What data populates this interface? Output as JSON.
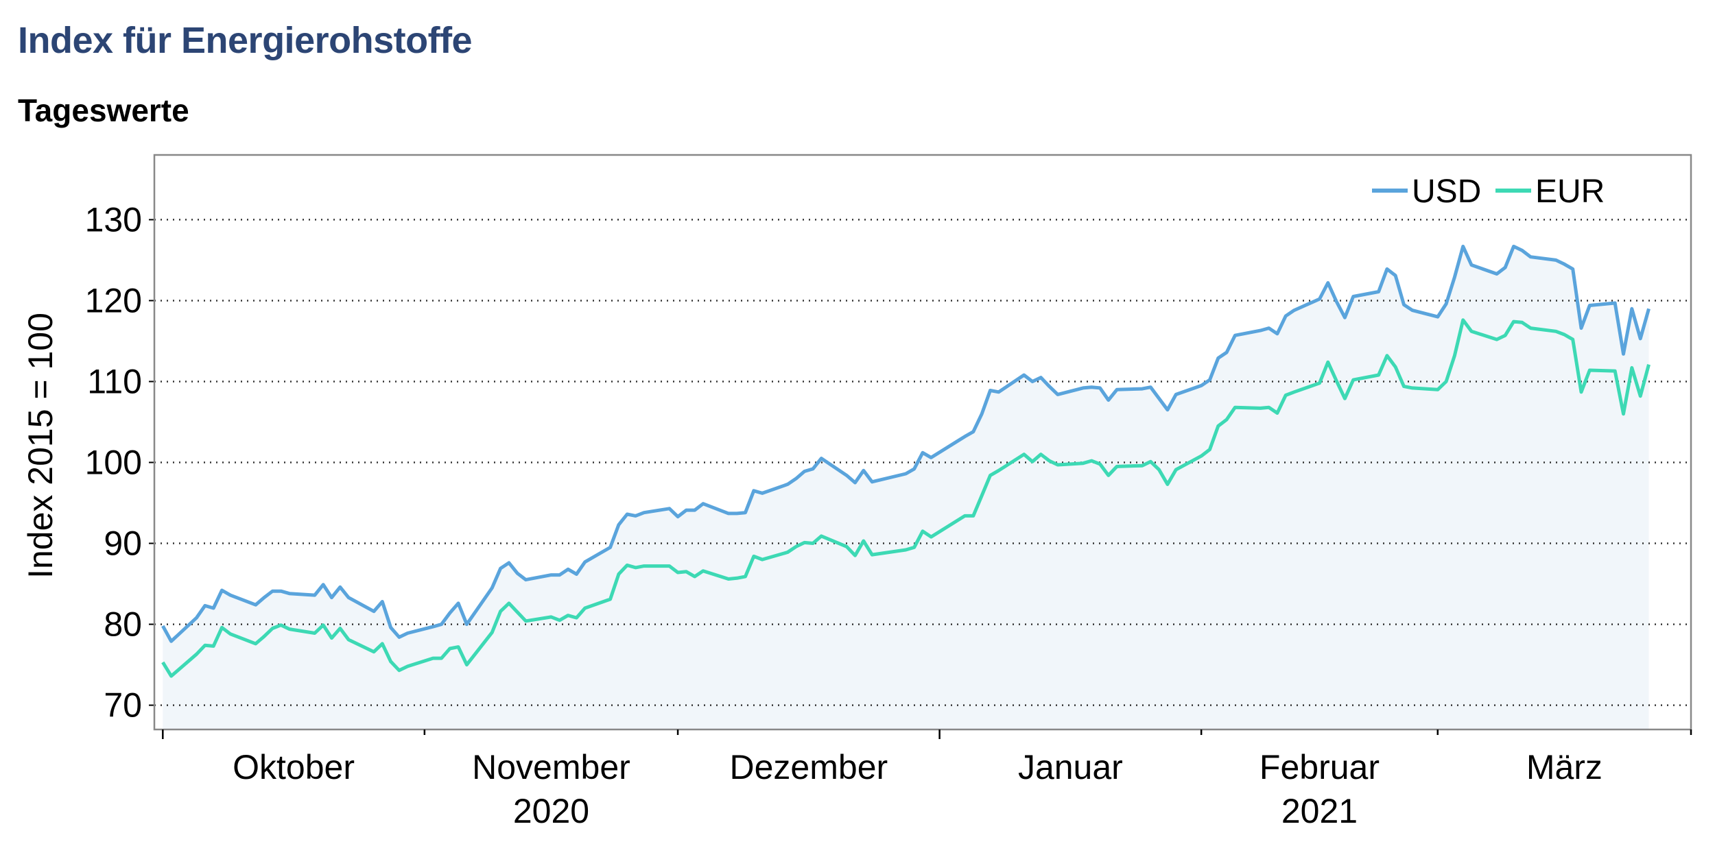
{
  "header": {
    "title": "Index für Energierohstoffe",
    "subtitle": "Tageswerte"
  },
  "colors": {
    "usd": "#5aa4dc",
    "eur": "#3dd9b4",
    "area": "#f1f6fa",
    "title": "#2c4574"
  },
  "chart_data": {
    "type": "line",
    "title": "Index für Energierohstoffe",
    "subtitle": "Tageswerte",
    "ylabel": "Index 2015 = 100",
    "xlabel": "",
    "ylim": [
      67,
      138
    ],
    "yticks": [
      70,
      80,
      90,
      100,
      110,
      120,
      130
    ],
    "grid": "horizontal-dotted",
    "legend_position": "top-right",
    "x_month_labels": [
      "Oktober",
      "November",
      "Dezember",
      "Januar",
      "Februar",
      "März"
    ],
    "x_year_labels": [
      {
        "label": "2020",
        "month": "November"
      },
      {
        "label": "2021",
        "month": "Februar"
      }
    ],
    "x_range": [
      "2020-09-30",
      "2021-03-31"
    ],
    "x_month_starts": [
      "2020-10-01",
      "2020-11-01",
      "2020-12-01",
      "2021-01-01",
      "2021-02-01",
      "2021-03-01"
    ],
    "x_major_ticks": [
      "2020-10-01",
      "2021-01-01"
    ],
    "dates": [
      "2020-10-01",
      "2020-10-02",
      "2020-10-05",
      "2020-10-06",
      "2020-10-07",
      "2020-10-08",
      "2020-10-09",
      "2020-10-12",
      "2020-10-13",
      "2020-10-14",
      "2020-10-15",
      "2020-10-16",
      "2020-10-19",
      "2020-10-20",
      "2020-10-21",
      "2020-10-22",
      "2020-10-23",
      "2020-10-26",
      "2020-10-27",
      "2020-10-28",
      "2020-10-29",
      "2020-10-30",
      "2020-11-02",
      "2020-11-03",
      "2020-11-04",
      "2020-11-05",
      "2020-11-06",
      "2020-11-09",
      "2020-11-10",
      "2020-11-11",
      "2020-11-12",
      "2020-11-13",
      "2020-11-16",
      "2020-11-17",
      "2020-11-18",
      "2020-11-19",
      "2020-11-20",
      "2020-11-23",
      "2020-11-24",
      "2020-11-25",
      "2020-11-26",
      "2020-11-27",
      "2020-11-30",
      "2020-12-01",
      "2020-12-02",
      "2020-12-03",
      "2020-12-04",
      "2020-12-07",
      "2020-12-08",
      "2020-12-09",
      "2020-12-10",
      "2020-12-11",
      "2020-12-14",
      "2020-12-15",
      "2020-12-16",
      "2020-12-17",
      "2020-12-18",
      "2020-12-21",
      "2020-12-22",
      "2020-12-23",
      "2020-12-24",
      "2020-12-28",
      "2020-12-29",
      "2020-12-30",
      "2020-12-31",
      "2021-01-04",
      "2021-01-05",
      "2021-01-06",
      "2021-01-07",
      "2021-01-08",
      "2021-01-11",
      "2021-01-12",
      "2021-01-13",
      "2021-01-14",
      "2021-01-15",
      "2021-01-18",
      "2021-01-19",
      "2021-01-20",
      "2021-01-21",
      "2021-01-22",
      "2021-01-25",
      "2021-01-26",
      "2021-01-27",
      "2021-01-28",
      "2021-01-29",
      "2021-02-01",
      "2021-02-02",
      "2021-02-03",
      "2021-02-04",
      "2021-02-05",
      "2021-02-08",
      "2021-02-09",
      "2021-02-10",
      "2021-02-11",
      "2021-02-12",
      "2021-02-15",
      "2021-02-16",
      "2021-02-17",
      "2021-02-18",
      "2021-02-19",
      "2021-02-22",
      "2021-02-23",
      "2021-02-24",
      "2021-02-25",
      "2021-02-26",
      "2021-03-01",
      "2021-03-02",
      "2021-03-03",
      "2021-03-04",
      "2021-03-05",
      "2021-03-08",
      "2021-03-09",
      "2021-03-10",
      "2021-03-11",
      "2021-03-12",
      "2021-03-15",
      "2021-03-16",
      "2021-03-17",
      "2021-03-18",
      "2021-03-19",
      "2021-03-22",
      "2021-03-23",
      "2021-03-24",
      "2021-03-25",
      "2021-03-26"
    ],
    "series": [
      {
        "name": "USD",
        "values": [
          79.8,
          77.9,
          80.8,
          82.3,
          82.0,
          84.2,
          83.6,
          82.4,
          83.3,
          84.1,
          84.1,
          83.8,
          83.6,
          84.9,
          83.3,
          84.6,
          83.3,
          81.6,
          82.8,
          79.6,
          78.4,
          78.9,
          79.7,
          80.0,
          81.4,
          82.6,
          80.0,
          84.5,
          86.9,
          87.6,
          86.3,
          85.5,
          86.1,
          86.1,
          86.8,
          86.2,
          87.7,
          89.5,
          92.3,
          93.6,
          93.4,
          93.8,
          94.3,
          93.3,
          94.1,
          94.1,
          94.9,
          93.7,
          93.7,
          93.8,
          96.5,
          96.2,
          97.3,
          98.0,
          98.9,
          99.2,
          100.5,
          98.4,
          97.5,
          99.0,
          97.6,
          98.6,
          99.2,
          101.2,
          100.6,
          103.2,
          103.8,
          106.0,
          108.9,
          108.7,
          110.8,
          110.0,
          110.5,
          109.4,
          108.4,
          109.2,
          109.3,
          109.2,
          107.7,
          109.0,
          109.1,
          109.3,
          107.9,
          106.5,
          108.4,
          109.5,
          110.2,
          112.9,
          113.6,
          115.7,
          116.3,
          116.6,
          115.9,
          118.1,
          118.8,
          120.2,
          122.2,
          119.9,
          117.9,
          120.5,
          121.1,
          123.9,
          123.1,
          119.5,
          118.8,
          118.0,
          119.6,
          122.9,
          126.7,
          124.4,
          123.3,
          124.1,
          126.7,
          126.2,
          125.4,
          125.0,
          124.5,
          123.9,
          116.6,
          119.4,
          119.7,
          113.4,
          119.0,
          115.3,
          119.0
        ]
      },
      {
        "name": "EUR",
        "values": [
          75.3,
          73.6,
          76.3,
          77.4,
          77.3,
          79.6,
          78.8,
          77.6,
          78.5,
          79.5,
          79.9,
          79.4,
          78.9,
          79.9,
          78.3,
          79.5,
          78.1,
          76.6,
          77.6,
          75.4,
          74.3,
          74.8,
          75.8,
          75.8,
          77.0,
          77.2,
          75.0,
          79.0,
          81.6,
          82.6,
          81.5,
          80.4,
          80.9,
          80.5,
          81.1,
          80.8,
          82.0,
          83.1,
          86.2,
          87.3,
          87.0,
          87.2,
          87.2,
          86.4,
          86.5,
          85.9,
          86.6,
          85.6,
          85.7,
          85.9,
          88.4,
          88.0,
          88.9,
          89.6,
          90.1,
          90.0,
          90.9,
          89.6,
          88.5,
          90.3,
          88.6,
          89.2,
          89.5,
          91.5,
          90.8,
          93.4,
          93.4,
          95.9,
          98.4,
          99.0,
          101.0,
          100.1,
          101.0,
          100.2,
          99.7,
          99.9,
          100.2,
          99.8,
          98.4,
          99.5,
          99.6,
          100.1,
          99.1,
          97.3,
          99.1,
          100.8,
          101.6,
          104.5,
          105.3,
          106.8,
          106.7,
          106.8,
          106.1,
          108.3,
          108.7,
          109.8,
          112.4,
          110.1,
          107.9,
          110.2,
          110.8,
          113.2,
          111.8,
          109.4,
          109.2,
          109.0,
          110.0,
          113.2,
          117.6,
          116.2,
          115.2,
          115.7,
          117.4,
          117.3,
          116.6,
          116.2,
          115.8,
          115.2,
          108.7,
          111.4,
          111.3,
          106.0,
          111.7,
          108.2,
          112.1
        ]
      }
    ]
  }
}
